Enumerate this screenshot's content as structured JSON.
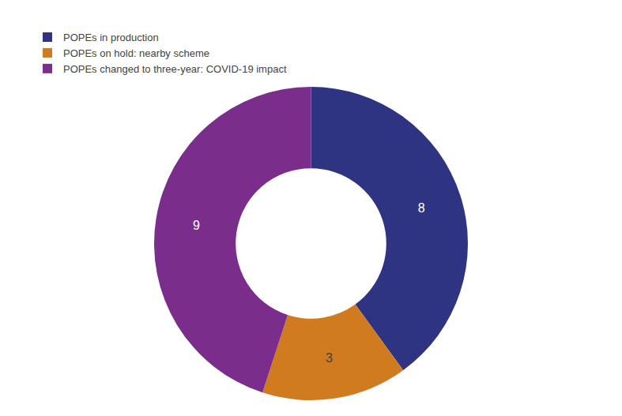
{
  "chart_data": {
    "type": "donut",
    "categories": [
      "POPEs in production",
      "POPEs on hold: nearby scheme",
      "POPEs changed to three-year: COVID-19 impact"
    ],
    "values": [
      8,
      3,
      9
    ],
    "colors": [
      "#2e3481",
      "#d07b20",
      "#7b2d8b"
    ],
    "data_labels": true,
    "legend": "upper left"
  }
}
